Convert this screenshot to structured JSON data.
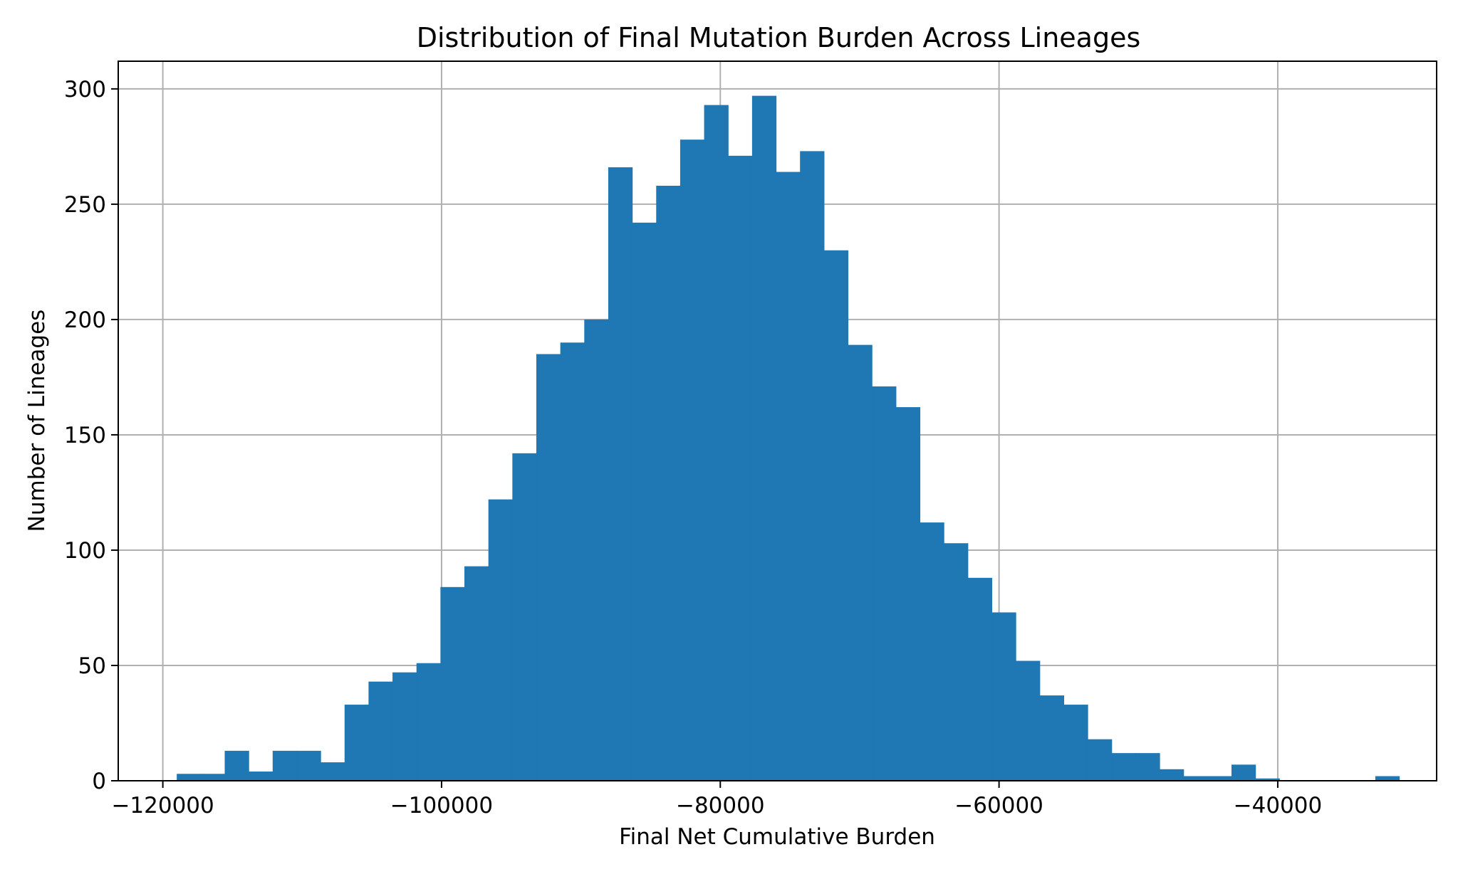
{
  "chart_data": {
    "type": "bar",
    "title": "Distribution of Final Mutation Burden Across Lineages",
    "xlabel": "Final Net Cumulative Burden",
    "ylabel": "Number of Lineages",
    "xlim": [
      -123200,
      -28600
    ],
    "ylim": [
      0,
      312
    ],
    "grid": true,
    "bar_color": "#1f77b4",
    "bin_start": -119000,
    "bin_width": 1720,
    "values": [
      3,
      3,
      13,
      4,
      13,
      13,
      8,
      33,
      43,
      47,
      51,
      84,
      93,
      122,
      142,
      185,
      190,
      200,
      266,
      242,
      258,
      278,
      293,
      271,
      297,
      264,
      273,
      230,
      189,
      171,
      162,
      112,
      103,
      88,
      73,
      52,
      37,
      33,
      18,
      12,
      12,
      5,
      2,
      2,
      7,
      1,
      0,
      0,
      0,
      0,
      2
    ],
    "x_ticks": [
      {
        "value": -120000,
        "label": "−120000"
      },
      {
        "value": -100000,
        "label": "−100000"
      },
      {
        "value": -80000,
        "label": "−80000"
      },
      {
        "value": -60000,
        "label": "−60000"
      },
      {
        "value": -40000,
        "label": "−40000"
      }
    ],
    "y_ticks": [
      {
        "value": 0,
        "label": "0"
      },
      {
        "value": 50,
        "label": "50"
      },
      {
        "value": 100,
        "label": "100"
      },
      {
        "value": 150,
        "label": "150"
      },
      {
        "value": 200,
        "label": "200"
      },
      {
        "value": 250,
        "label": "250"
      },
      {
        "value": 300,
        "label": "300"
      }
    ]
  }
}
